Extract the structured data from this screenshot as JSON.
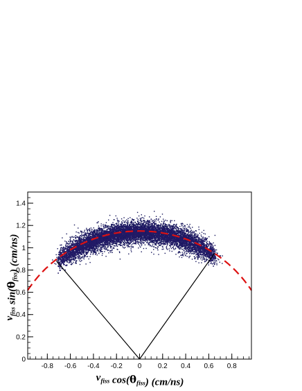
{
  "chart_data": {
    "type": "scatter",
    "title": "",
    "xlabel": {
      "parts": [
        {
          "text": "v",
          "style": "main"
        },
        {
          "text": "fiss",
          "style": "sub"
        },
        {
          "text": " cos(",
          "style": "main"
        },
        {
          "text": "θ",
          "style": "greek"
        },
        {
          "text": "fiss",
          "style": "sub"
        },
        {
          "text": ") (cm/ns)",
          "style": "main"
        }
      ]
    },
    "ylabel": {
      "parts": [
        {
          "text": "v",
          "style": "main"
        },
        {
          "text": "fiss",
          "style": "sub"
        },
        {
          "text": " sin(",
          "style": "main"
        },
        {
          "text": "θ",
          "style": "greek"
        },
        {
          "text": "fiss",
          "style": "sub"
        },
        {
          "text": ") (cm/ns)",
          "style": "main"
        }
      ]
    },
    "xlim": [
      -0.97,
      0.97
    ],
    "ylim": [
      0,
      1.5
    ],
    "xticks": [
      -0.8,
      -0.6,
      -0.4,
      -0.2,
      0,
      0.2,
      0.4,
      0.6,
      0.8
    ],
    "xtick_labels": [
      "-0.8",
      "-0.6",
      "-0.4",
      "-0.2",
      "0",
      "0.2",
      "0.4",
      "0.6",
      "0.8"
    ],
    "yticks": [
      0,
      0.2,
      0.4,
      0.6,
      0.8,
      1,
      1.2,
      1.4
    ],
    "ytick_labels": [
      "0",
      "0.2",
      "0.4",
      "0.6",
      "0.8",
      "1",
      "1.2",
      "1.4"
    ],
    "grid": false,
    "legend": "none",
    "colors": {
      "scatter": "#14145a",
      "dashed_circle": "#dd1111",
      "cone": "#000000"
    },
    "scatter_band": {
      "description_of_distribution": "dense band of events",
      "arc_radius_center": 1.14,
      "arc_radius_min_edge": 1.0,
      "arc_radius_max_edge": 1.3,
      "x_range": [
        -0.77,
        0.73
      ],
      "center_x": -0.03
    },
    "dashed_circle": {
      "center": [
        0,
        0
      ],
      "radius": 1.15,
      "style": "dashed"
    },
    "cone_lines": [
      {
        "from": [
          0,
          0
        ],
        "to": [
          -0.72,
          0.88
        ]
      },
      {
        "from": [
          0,
          0
        ],
        "to": [
          0.65,
          0.95
        ]
      }
    ]
  }
}
